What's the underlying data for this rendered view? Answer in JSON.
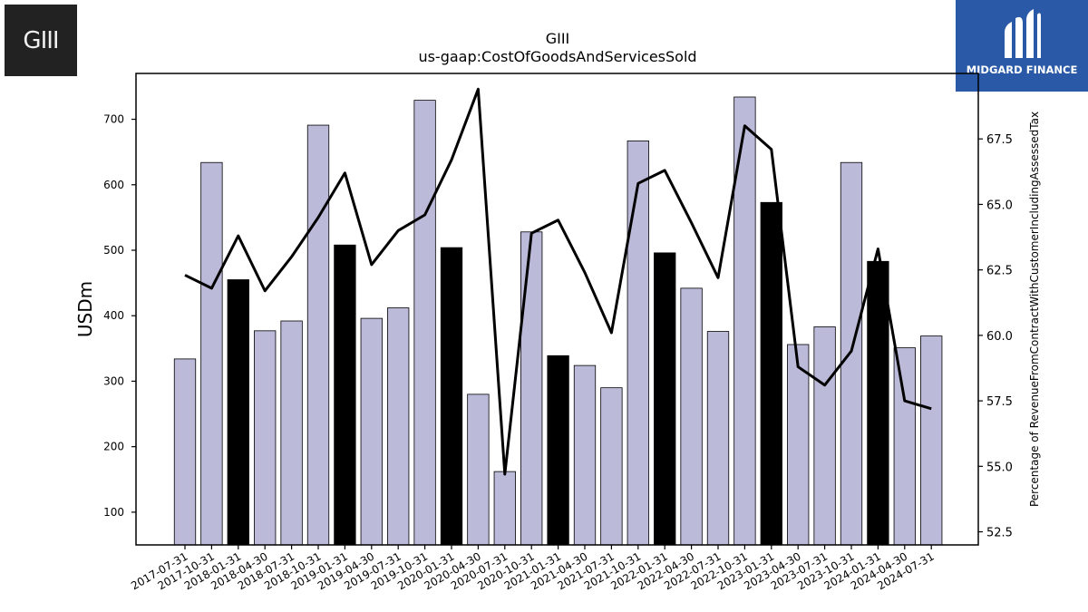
{
  "logos": {
    "left_text": "GIII",
    "right_text": "MIDGARD FINANCE"
  },
  "chart_data": {
    "type": "bar",
    "title": "GIII",
    "subtitle": "us-gaap:CostOfGoodsAndServicesSold",
    "ylabel": "USDm",
    "y2label": "Percentage of RevenueFromContractWithCustomerIncludingAssessedTax",
    "ylim": [
      50,
      770
    ],
    "y2lim": [
      52.0,
      70.0
    ],
    "yticks": [
      100,
      200,
      300,
      400,
      500,
      600,
      700
    ],
    "y2ticks": [
      "52.5",
      "55.0",
      "57.5",
      "60.0",
      "62.5",
      "65.0",
      "67.5"
    ],
    "categories": [
      "2017-07-31",
      "2017-10-31",
      "2018-01-31",
      "2018-04-30",
      "2018-07-31",
      "2018-10-31",
      "2019-01-31",
      "2019-04-30",
      "2019-07-31",
      "2019-10-31",
      "2020-01-31",
      "2020-04-30",
      "2020-07-31",
      "2020-10-31",
      "2021-01-31",
      "2021-04-30",
      "2021-07-31",
      "2021-10-31",
      "2022-01-31",
      "2022-04-30",
      "2022-07-31",
      "2022-10-31",
      "2023-01-31",
      "2023-04-30",
      "2023-07-31",
      "2023-10-31",
      "2024-01-31",
      "2024-04-30",
      "2024-07-31"
    ],
    "values": [
      334,
      634,
      455,
      377,
      392,
      691,
      508,
      396,
      412,
      729,
      504,
      280,
      162,
      528,
      339,
      324,
      290,
      667,
      496,
      442,
      376,
      734,
      573,
      356,
      383,
      634,
      483,
      351,
      369
    ],
    "highlight": [
      false,
      false,
      true,
      false,
      false,
      false,
      true,
      false,
      false,
      false,
      true,
      false,
      false,
      false,
      true,
      false,
      false,
      false,
      true,
      false,
      false,
      false,
      true,
      false,
      false,
      false,
      true,
      false,
      false
    ],
    "line_values": [
      62.3,
      61.8,
      63.8,
      61.7,
      63.0,
      64.5,
      66.2,
      62.7,
      64.0,
      64.6,
      66.7,
      69.4,
      54.7,
      63.9,
      64.4,
      62.4,
      60.1,
      65.8,
      66.3,
      64.3,
      62.2,
      68.0,
      67.1,
      58.8,
      58.1,
      59.4,
      63.3,
      57.5,
      57.2
    ],
    "colors": {
      "bar": "#bcbad9",
      "bar_highlight": "#000000",
      "line": "#000000"
    },
    "grid": false,
    "legend": "none"
  }
}
